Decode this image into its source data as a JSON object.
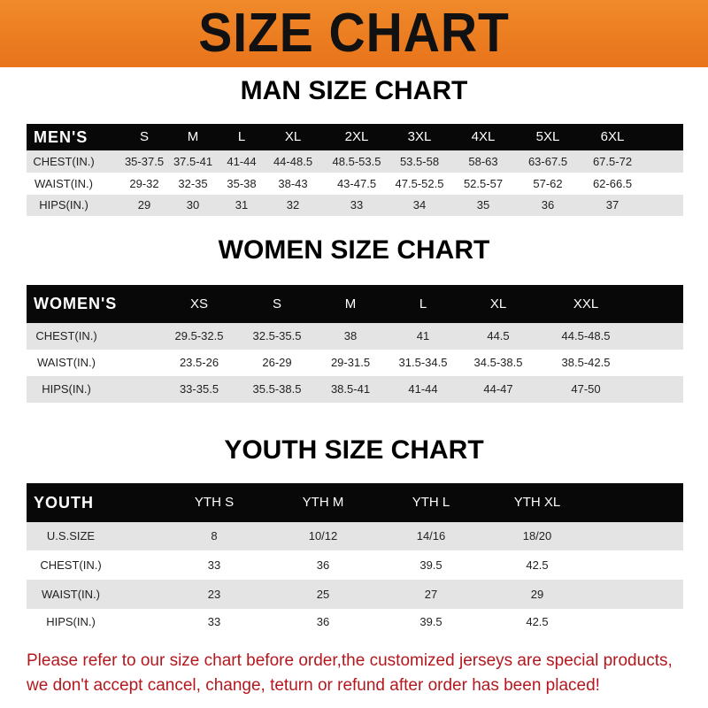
{
  "banner": {
    "title": "SIZE CHART"
  },
  "men": {
    "title": "MAN SIZE CHART",
    "header": [
      "MEN'S",
      "S",
      "M",
      "L",
      "XL",
      "2XL",
      "3XL",
      "4XL",
      "5XL",
      "6XL"
    ],
    "rows": [
      [
        "CHEST(IN.)",
        "35-37.5",
        "37.5-41",
        "41-44",
        "44-48.5",
        "48.5-53.5",
        "53.5-58",
        "58-63",
        "63-67.5",
        "67.5-72"
      ],
      [
        "WAIST(IN.)",
        "29-32",
        "32-35",
        "35-38",
        "38-43",
        "43-47.5",
        "47.5-52.5",
        "52.5-57",
        "57-62",
        "62-66.5"
      ],
      [
        "HIPS(IN.)",
        "29",
        "30",
        "31",
        "32",
        "33",
        "34",
        "35",
        "36",
        "37"
      ]
    ]
  },
  "women": {
    "title": "WOMEN SIZE CHART",
    "header": [
      "WOMEN'S",
      "XS",
      "S",
      "M",
      "L",
      "XL",
      "XXL"
    ],
    "rows": [
      [
        "CHEST(IN.)",
        "29.5-32.5",
        "32.5-35.5",
        "38",
        "41",
        "44.5",
        "44.5-48.5"
      ],
      [
        "WAIST(IN.)",
        "23.5-26",
        "26-29",
        "29-31.5",
        "31.5-34.5",
        "34.5-38.5",
        "38.5-42.5"
      ],
      [
        "HIPS(IN.)",
        "33-35.5",
        "35.5-38.5",
        "38.5-41",
        "41-44",
        "44-47",
        "47-50"
      ]
    ]
  },
  "youth": {
    "title": "YOUTH SIZE CHART",
    "header": [
      "YOUTH",
      "YTH S",
      "YTH M",
      "YTH L",
      "YTH XL"
    ],
    "rows": [
      [
        "U.S.SIZE",
        "8",
        "10/12",
        "14/16",
        "18/20"
      ],
      [
        "CHEST(IN.)",
        "33",
        "36",
        "39.5",
        "42.5"
      ],
      [
        "WAIST(IN.)",
        "23",
        "25",
        "27",
        "29"
      ],
      [
        "HIPS(IN.)",
        "33",
        "36",
        "39.5",
        "42.5"
      ]
    ]
  },
  "notice": {
    "line1": "Please refer to our size chart before order,the customized jerseys are special products,",
    "line2": "we don't accept cancel, change, teturn or refund after order has been placed!"
  },
  "colors": {
    "banner": "#e8731a",
    "header_row": "#080808",
    "stripe": "#e4e4e4",
    "notice": "#b3181e"
  }
}
